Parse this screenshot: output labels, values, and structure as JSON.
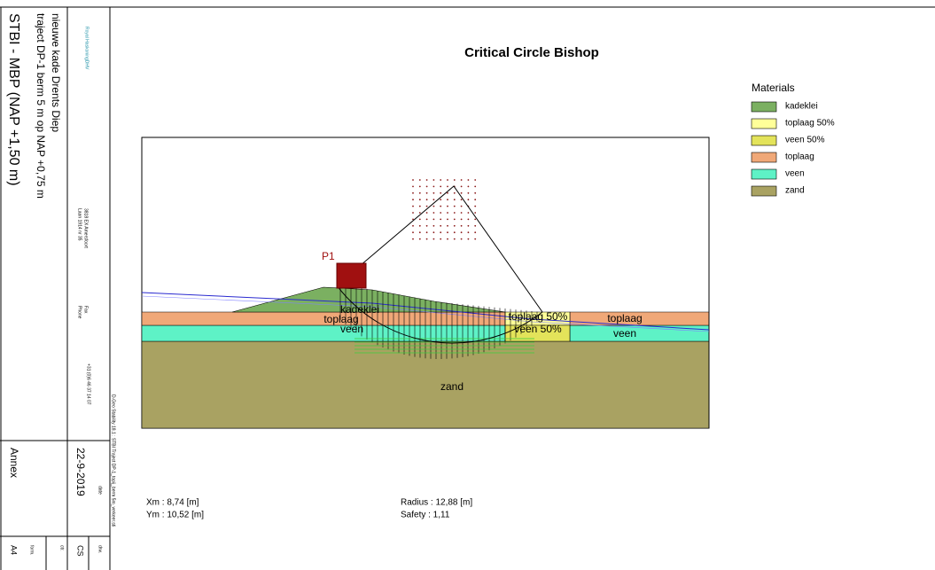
{
  "title_block": {
    "project": "nieuwe kade Drents Diep",
    "subtitle": "traject DP-1 berm 5 m op NAP +0,75 m",
    "title": "STBI - MBP (NAP +1,50 m)",
    "company": "Royal HaskoningDHV",
    "address_1": "Laan 1914 nr 35",
    "address_2": "3818 EX Amersfoort",
    "phone_label": "Phone",
    "phone": "+31 (0)6 46 37 14 07",
    "fax_label": "Fax",
    "file": "D-Geo Stability 18.1 : STBI Traject DP-1_topij_berm 5m_verkeer.sti",
    "annex": "Annex",
    "date": "22-9-2019",
    "date_label": "date",
    "drawn": "CS",
    "drawn_label": "drw.",
    "checked_label": "ctr.",
    "form_label": "form.",
    "form": "A4"
  },
  "drawing": {
    "title": "Critical Circle Bishop",
    "load": "P1",
    "layer_labels": [
      "kadeklei",
      "toplaag",
      "veen",
      "toplaag 50%",
      "veen 50%",
      "toplaag",
      "veen",
      "zand"
    ]
  },
  "legend": {
    "title": "Materials",
    "items": [
      {
        "name": "kadeklei",
        "color": "#7bb061"
      },
      {
        "name": "toplaag 50%",
        "color": "#ffff99"
      },
      {
        "name": "veen 50%",
        "color": "#e3e35a"
      },
      {
        "name": "toplaag",
        "color": "#f0a878"
      },
      {
        "name": "veen",
        "color": "#5ef2c6"
      },
      {
        "name": "zand",
        "color": "#a9a262"
      }
    ]
  },
  "results": {
    "xm": "Xm : 8,74 [m]",
    "ym": "Ym : 10,52 [m]",
    "radius": "Radius : 12,88 [m]",
    "safety": "Safety : 1,11"
  }
}
